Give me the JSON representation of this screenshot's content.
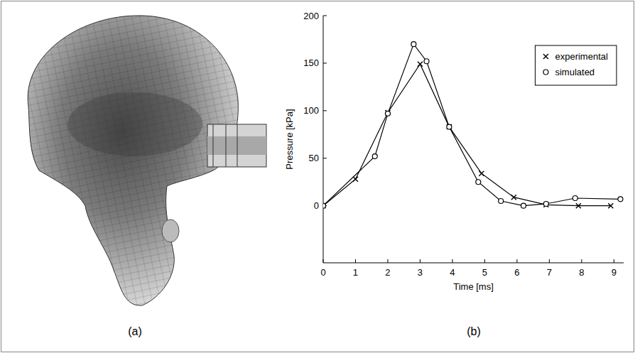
{
  "chart_data": {
    "type": "line",
    "x_label": "Time [ms]",
    "y_label": "Pressure [kPa]",
    "xlim": [
      0,
      9.3
    ],
    "xticks": [
      0,
      1,
      2,
      3,
      4,
      5,
      6,
      7,
      8,
      9
    ],
    "ylim": [
      -60,
      200
    ],
    "yticks": [
      0,
      50,
      100,
      150,
      200
    ],
    "grid": false,
    "legend": "upper right",
    "series": [
      {
        "name": "experimental",
        "color": "#000000",
        "marker": "x",
        "line_style": "solid",
        "x": [
          0,
          1,
          2,
          3,
          3.9,
          4.9,
          5.9,
          6.9,
          7.9,
          8.9
        ],
        "values": [
          0,
          28,
          98,
          149,
          83,
          34,
          9,
          1,
          0,
          0
        ]
      },
      {
        "name": "simulated",
        "color": "#000000",
        "marker": "o",
        "line_style": "solid",
        "x": [
          0,
          1.6,
          2.0,
          2.8,
          3.2,
          3.9,
          4.8,
          5.5,
          6.2,
          6.9,
          7.8,
          9.2
        ],
        "values": [
          0,
          52,
          97,
          170,
          152,
          83,
          25,
          5,
          0,
          2,
          8,
          7
        ]
      }
    ]
  },
  "figure": {
    "panels": [
      "(a)",
      "(b)"
    ]
  }
}
